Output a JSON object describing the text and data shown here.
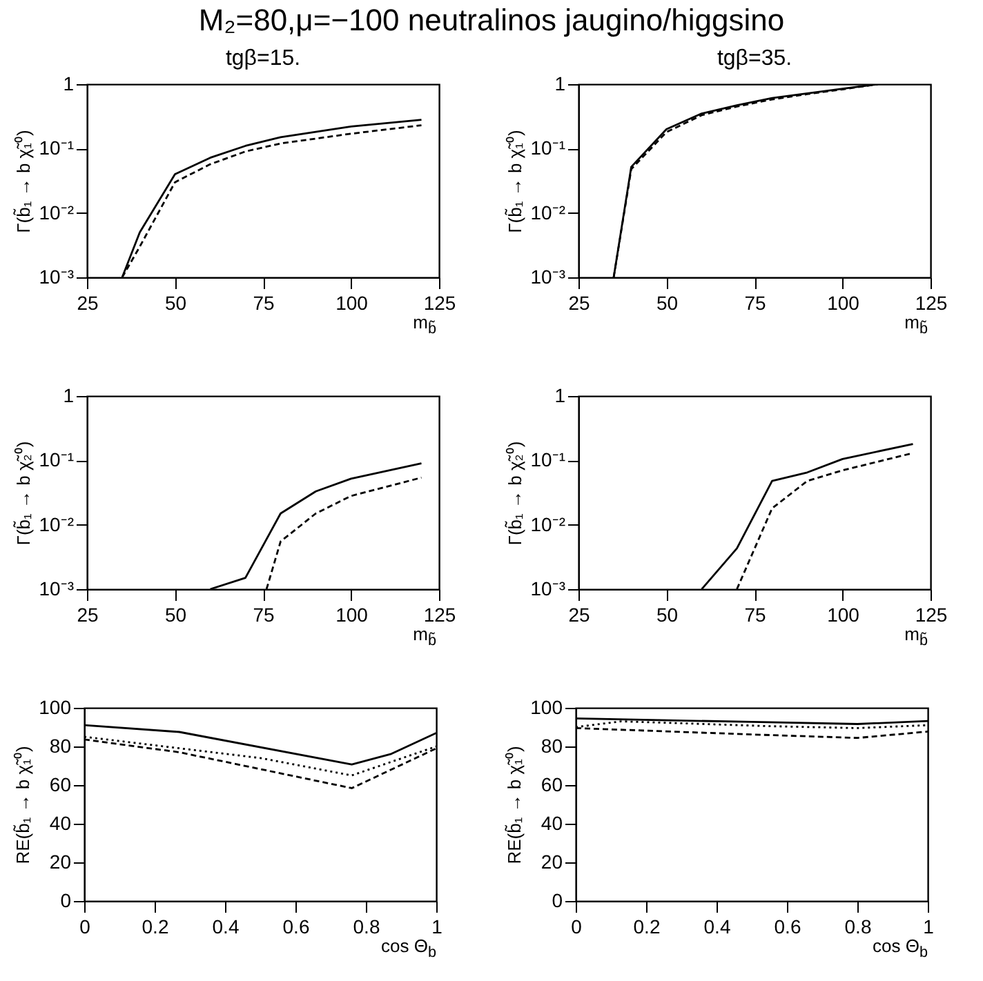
{
  "chart_data": [
    {
      "type": "line",
      "title": "M₂=80,μ=−100 neutralinos jaugino/higgsino",
      "subtitle": "tgβ=15.",
      "xlabel": "m$_{b̃}$",
      "ylabel": "Γ(b̃₁ → b χ̃₁⁰)",
      "log": true,
      "xlim": [
        25,
        125
      ],
      "xticks": [
        25,
        50,
        75,
        100,
        125
      ],
      "ylim": [
        0.001,
        1
      ],
      "yticks": [
        {
          "value": 0.001,
          "label": "10⁻³"
        },
        {
          "value": 0.01,
          "label": "10⁻²"
        },
        {
          "value": 0.1,
          "label": "10⁻¹"
        },
        1
      ],
      "series": [
        {
          "color": "#000000",
          "line_style": "solid",
          "x": [
            35,
            40,
            50,
            60,
            70,
            80,
            100,
            120
          ],
          "values": [
            0.001,
            0.005,
            0.04,
            0.072,
            0.11,
            0.15,
            0.22,
            0.28
          ]
        },
        {
          "color": "#000000",
          "line_style": "dashed",
          "x": [
            35,
            40,
            50,
            60,
            70,
            80,
            100,
            120
          ],
          "values": [
            0.001,
            0.003,
            0.03,
            0.057,
            0.09,
            0.12,
            0.17,
            0.23
          ]
        }
      ]
    },
    {
      "type": "line",
      "subtitle": "tgβ=35.",
      "xlabel": "m$_{b̃}$",
      "ylabel": "Γ(b̃₁ → b χ̃₁⁰)",
      "log": true,
      "xlim": [
        25,
        125
      ],
      "xticks": [
        25,
        50,
        75,
        100,
        125
      ],
      "ylim": [
        0.001,
        1
      ],
      "yticks": [
        {
          "value": 0.001,
          "label": "10⁻³"
        },
        {
          "value": 0.01,
          "label": "10⁻²"
        },
        {
          "value": 0.1,
          "label": "10⁻¹"
        },
        1
      ],
      "series": [
        {
          "color": "#000000",
          "line_style": "solid",
          "x": [
            35,
            40,
            50,
            60,
            70,
            80,
            90,
            100,
            110
          ],
          "values": [
            0.001,
            0.052,
            0.2,
            0.35,
            0.47,
            0.61,
            0.72,
            0.85,
            1
          ]
        },
        {
          "color": "#000000",
          "line_style": "dashed",
          "x": [
            35,
            40,
            50,
            60,
            70,
            80,
            90,
            100,
            110
          ],
          "values": [
            0.001,
            0.048,
            0.18,
            0.33,
            0.45,
            0.58,
            0.7,
            0.83,
            1
          ]
        }
      ]
    },
    {
      "type": "line",
      "xlabel": "m$_{b̃}$",
      "ylabel": "Γ(b̃₁ → b χ̃₂⁰)",
      "log": true,
      "xlim": [
        25,
        125
      ],
      "xticks": [
        25,
        50,
        75,
        100,
        125
      ],
      "ylim": [
        0.001,
        1
      ],
      "yticks": [
        {
          "value": 0.001,
          "label": "10⁻³"
        },
        {
          "value": 0.01,
          "label": "10⁻²"
        },
        {
          "value": 0.1,
          "label": "10⁻¹"
        },
        1
      ],
      "series": [
        {
          "color": "#000000",
          "line_style": "solid",
          "x": [
            60,
            70,
            80,
            90,
            100,
            120
          ],
          "values": [
            0.001,
            0.0015,
            0.015,
            0.033,
            0.052,
            0.09
          ]
        },
        {
          "color": "#000000",
          "line_style": "dashed",
          "x": [
            76,
            80,
            90,
            100,
            120
          ],
          "values": [
            0.001,
            0.0055,
            0.015,
            0.028,
            0.054
          ]
        }
      ]
    },
    {
      "type": "line",
      "xlabel": "m$_{b̃}$",
      "ylabel": "Γ(b̃₁ → b χ̃₂⁰)",
      "log": true,
      "xlim": [
        25,
        125
      ],
      "xticks": [
        25,
        50,
        75,
        100,
        125
      ],
      "ylim": [
        0.001,
        1
      ],
      "yticks": [
        {
          "value": 0.001,
          "label": "10⁻³"
        },
        {
          "value": 0.01,
          "label": "10⁻²"
        },
        {
          "value": 0.1,
          "label": "10⁻¹"
        },
        1
      ],
      "series": [
        {
          "color": "#000000",
          "line_style": "solid",
          "x": [
            60,
            70,
            80,
            90,
            100,
            120
          ],
          "values": [
            0.001,
            0.0043,
            0.048,
            0.065,
            0.105,
            0.18
          ]
        },
        {
          "color": "#000000",
          "line_style": "dashed",
          "x": [
            70,
            80,
            90,
            100,
            120
          ],
          "values": [
            0.001,
            0.018,
            0.048,
            0.07,
            0.13
          ]
        }
      ]
    },
    {
      "type": "line",
      "xlabel": "cos Θ$_{b}$",
      "ylabel": "RE(b̃₁ → b χ̃₁⁰)",
      "xlim": [
        0,
        1
      ],
      "xticks": [
        0,
        0.2,
        0.4,
        0.6,
        0.8,
        1
      ],
      "ylim": [
        0,
        100
      ],
      "yticks": [
        0,
        20,
        40,
        60,
        80,
        100
      ],
      "series": [
        {
          "color": "#000000",
          "line_style": "solid",
          "x": [
            0,
            0.27,
            0.76,
            0.87,
            1
          ],
          "values": [
            91,
            87.5,
            70.7,
            76,
            87
          ]
        },
        {
          "color": "#000000",
          "line_style": "dashed",
          "x": [
            0,
            0.27,
            0.76,
            1
          ],
          "values": [
            83.6,
            77,
            58.4,
            79
          ]
        },
        {
          "color": "#000000",
          "line_style": "dotted",
          "x": [
            0,
            0.5,
            0.76,
            1
          ],
          "values": [
            85,
            74,
            65,
            80
          ]
        }
      ]
    },
    {
      "type": "line",
      "xlabel": "cos Θ$_{b}$",
      "ylabel": "RE(b̃₁ → b χ̃₁⁰)",
      "xlim": [
        0,
        1
      ],
      "xticks": [
        0,
        0.2,
        0.4,
        0.6,
        0.8,
        1
      ],
      "ylim": [
        0,
        100
      ],
      "yticks": [
        0,
        20,
        40,
        60,
        80,
        100
      ],
      "series": [
        {
          "color": "#000000",
          "line_style": "solid",
          "x": [
            0,
            0.5,
            0.8,
            1
          ],
          "values": [
            94.5,
            92.7,
            91.6,
            93.2
          ]
        },
        {
          "color": "#000000",
          "line_style": "dashed",
          "x": [
            0,
            0.5,
            0.8,
            1
          ],
          "values": [
            89.5,
            86.2,
            84.4,
            87.7
          ]
        },
        {
          "color": "#000000",
          "line_style": "dotted",
          "x": [
            0,
            0.13,
            0.3,
            0.55,
            0.8,
            1
          ],
          "values": [
            90,
            93,
            92,
            90.5,
            89.5,
            91
          ]
        }
      ]
    }
  ]
}
